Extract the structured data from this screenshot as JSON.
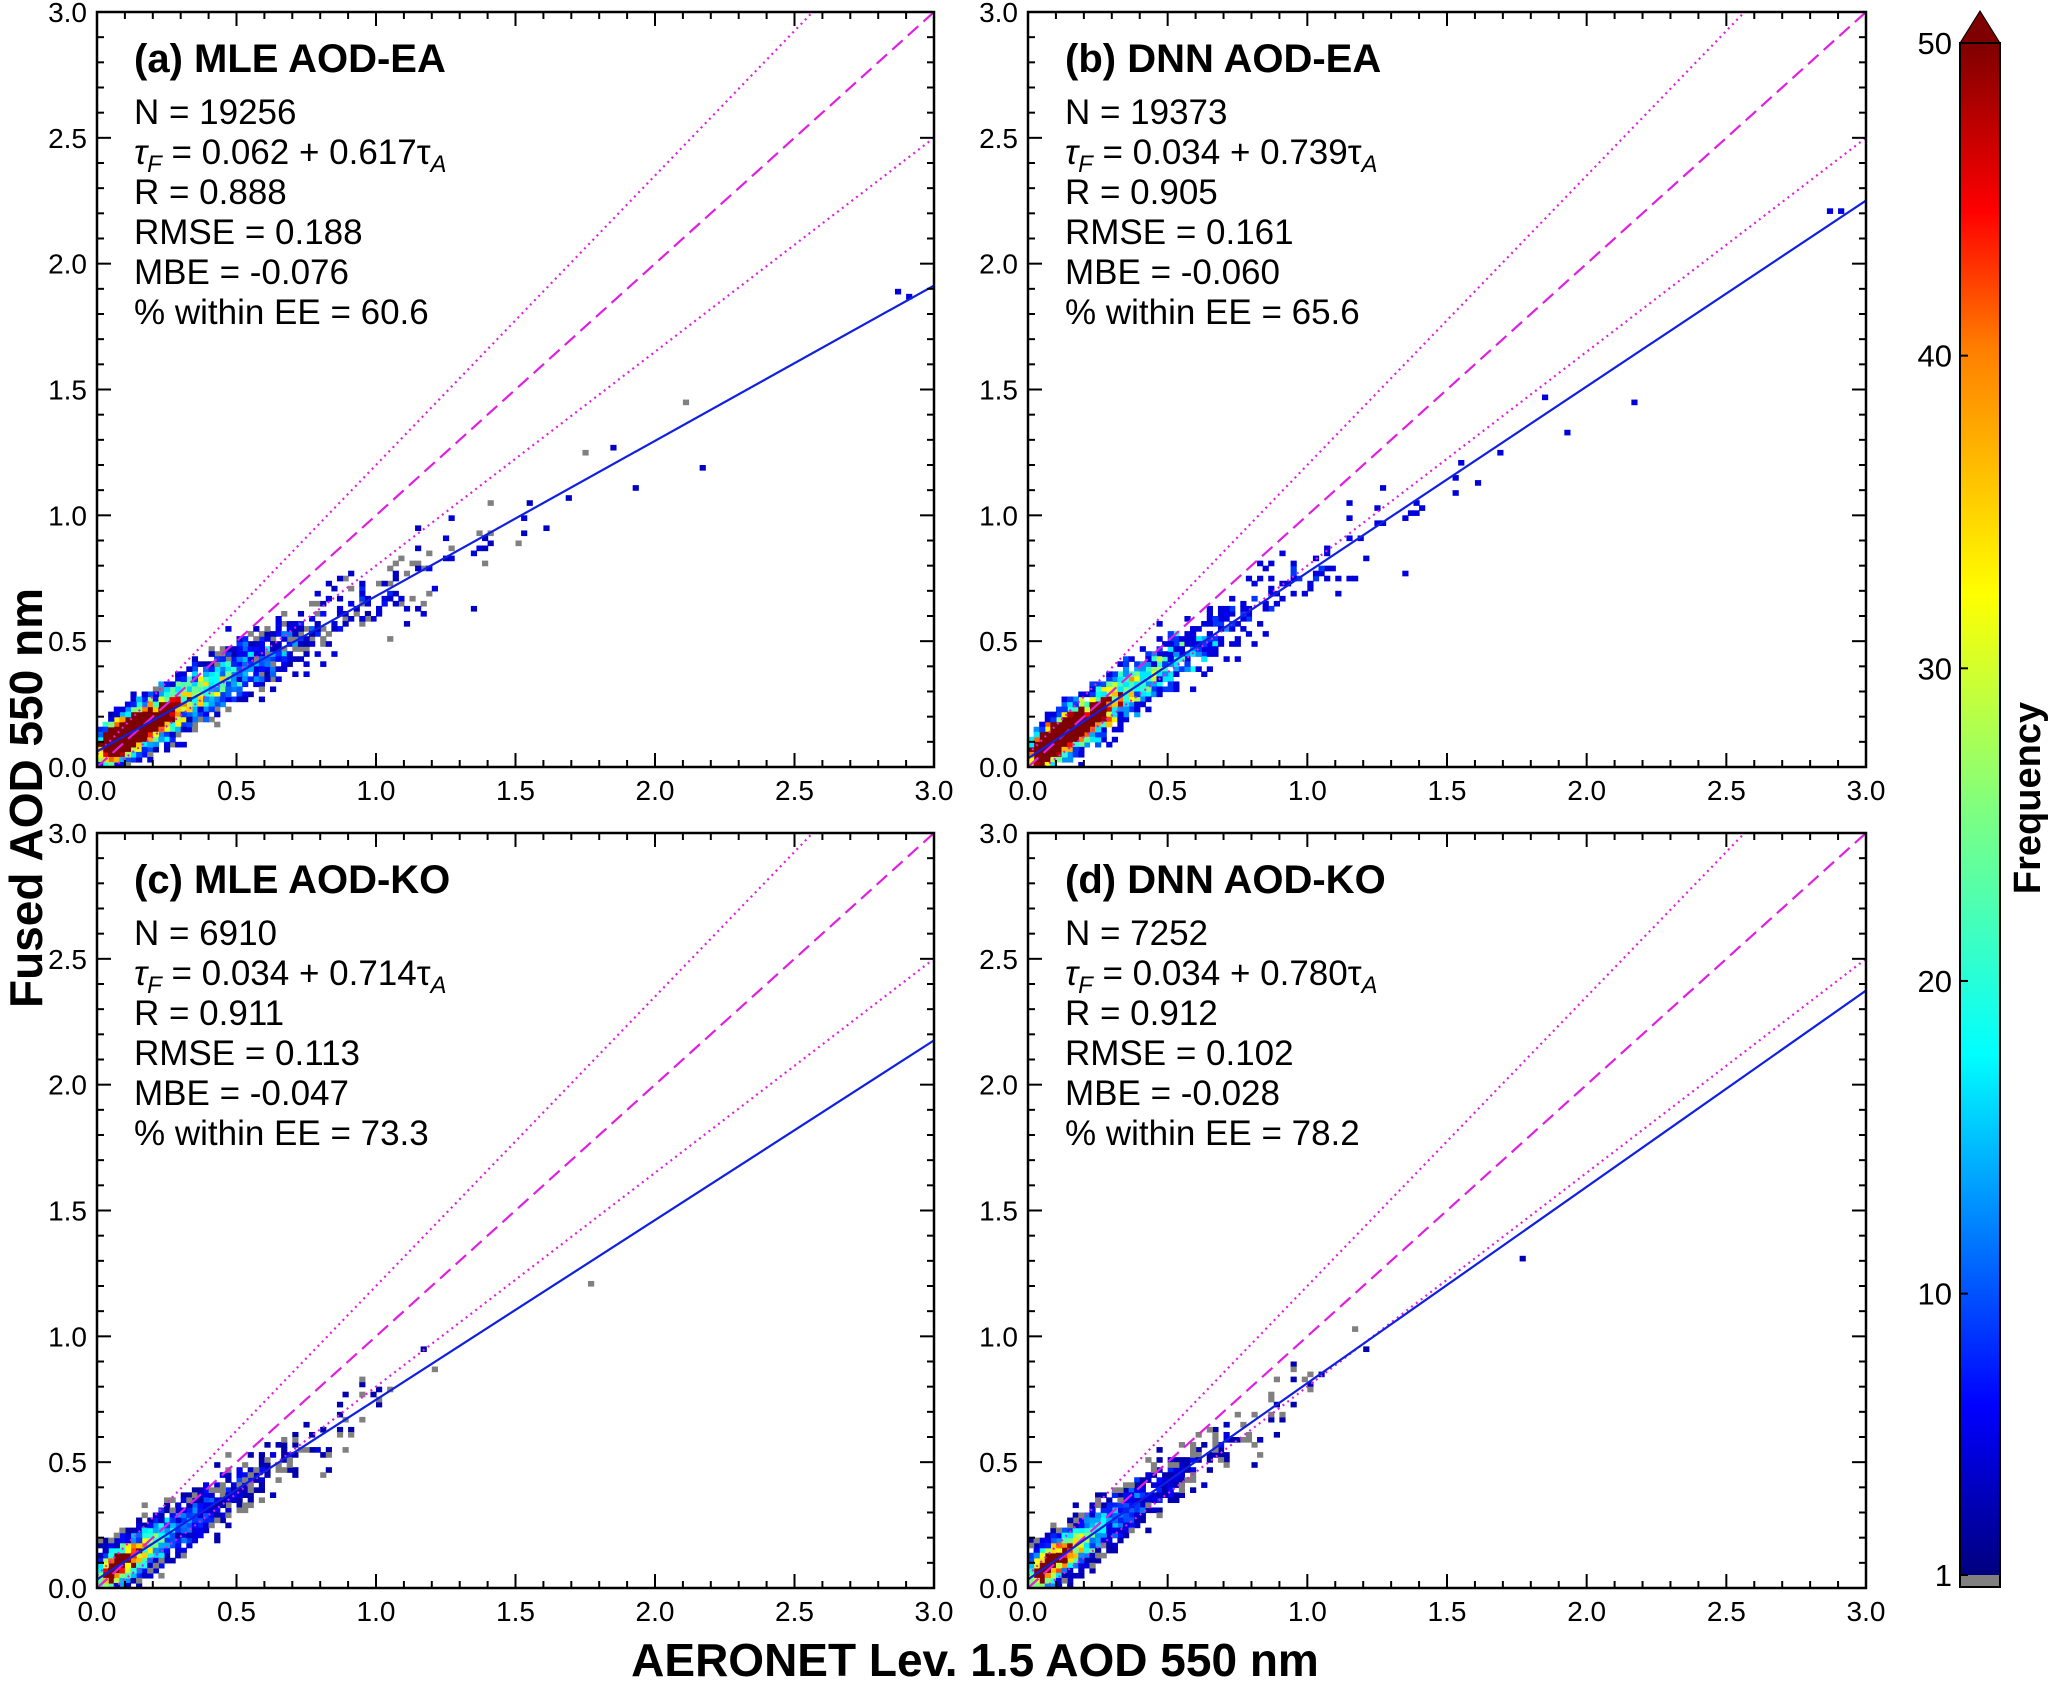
{
  "figure": {
    "xlabel": "AERONET Lev. 1.5 AOD 550 nm",
    "ylabel": "Fused AOD 550 nm",
    "colorbar": {
      "label": "Frequency",
      "ticks": [
        1,
        10,
        20,
        30,
        40,
        50
      ],
      "range": [
        1,
        50
      ],
      "extend": "max",
      "under_color": "#808080"
    }
  },
  "chart_data": [
    {
      "type": "heatmap",
      "title": "(a) MLE AOD-EA",
      "xlim": [
        0,
        3
      ],
      "ylim": [
        0,
        3
      ],
      "xticks": [
        "0.0",
        "0.5",
        "1.0",
        "1.5",
        "2.0",
        "2.5",
        "3.0"
      ],
      "yticks": [
        "0.0",
        "0.5",
        "1.0",
        "1.5",
        "2.0",
        "2.5",
        "3.0"
      ],
      "stats": {
        "n_label": "N = 19256",
        "fit_lhs": "τ",
        "fit_lhs_sub": "F",
        "fit_rhs": " = 0.062 + 0.617τ",
        "fit_rhs_sub": "A",
        "r_label": "R = 0.888",
        "rmse_label": "RMSE = 0.188",
        "mbe_label": "MBE = -0.076",
        "ee_label": "% within EE = 60.6"
      },
      "fit": {
        "intercept": 0.062,
        "slope": 0.617
      },
      "N": 19256,
      "R": 0.888,
      "RMSE": 0.188,
      "MBE": -0.076,
      "within_EE_pct": 60.6,
      "ee_envelope": {
        "abs": 0.05,
        "rel": 0.15
      },
      "density_core": {
        "x": 0.15,
        "y": 0.14,
        "peak_frequency": 50
      }
    },
    {
      "type": "heatmap",
      "title": "(b) DNN AOD-EA",
      "xlim": [
        0,
        3
      ],
      "ylim": [
        0,
        3
      ],
      "xticks": [
        "0.0",
        "0.5",
        "1.0",
        "1.5",
        "2.0",
        "2.5",
        "3.0"
      ],
      "yticks": [
        "0.0",
        "0.5",
        "1.0",
        "1.5",
        "2.0",
        "2.5",
        "3.0"
      ],
      "stats": {
        "n_label": "N = 19373",
        "fit_lhs": "τ",
        "fit_lhs_sub": "F",
        "fit_rhs": " = 0.034 + 0.739τ",
        "fit_rhs_sub": "A",
        "r_label": "R = 0.905",
        "rmse_label": "RMSE = 0.161",
        "mbe_label": "MBE = -0.060",
        "ee_label": "% within EE = 65.6"
      },
      "fit": {
        "intercept": 0.034,
        "slope": 0.739
      },
      "N": 19373,
      "R": 0.905,
      "RMSE": 0.161,
      "MBE": -0.06,
      "within_EE_pct": 65.6,
      "ee_envelope": {
        "abs": 0.05,
        "rel": 0.15
      },
      "density_core": {
        "x": 0.15,
        "y": 0.13,
        "peak_frequency": 50
      }
    },
    {
      "type": "heatmap",
      "title": "(c) MLE AOD-KO",
      "xlim": [
        0,
        3
      ],
      "ylim": [
        0,
        3
      ],
      "xticks": [
        "0.0",
        "0.5",
        "1.0",
        "1.5",
        "2.0",
        "2.5",
        "3.0"
      ],
      "yticks": [
        "0.0",
        "0.5",
        "1.0",
        "1.5",
        "2.0",
        "2.5",
        "3.0"
      ],
      "stats": {
        "n_label": "N = 6910",
        "fit_lhs": "τ",
        "fit_lhs_sub": "F",
        "fit_rhs": " = 0.034 + 0.714τ",
        "fit_rhs_sub": "A",
        "r_label": "R = 0.911",
        "rmse_label": "RMSE = 0.113",
        "mbe_label": "MBE = -0.047",
        "ee_label": "% within EE = 73.3"
      },
      "fit": {
        "intercept": 0.034,
        "slope": 0.714
      },
      "N": 6910,
      "R": 0.911,
      "RMSE": 0.113,
      "MBE": -0.047,
      "within_EE_pct": 73.3,
      "ee_envelope": {
        "abs": 0.05,
        "rel": 0.15
      },
      "density_core": {
        "x": 0.1,
        "y": 0.11,
        "peak_frequency": 45
      }
    },
    {
      "type": "heatmap",
      "title": "(d) DNN AOD-KO",
      "xlim": [
        0,
        3
      ],
      "ylim": [
        0,
        3
      ],
      "xticks": [
        "0.0",
        "0.5",
        "1.0",
        "1.5",
        "2.0",
        "2.5",
        "3.0"
      ],
      "yticks": [
        "0.0",
        "0.5",
        "1.0",
        "1.5",
        "2.0",
        "2.5",
        "3.0"
      ],
      "stats": {
        "n_label": "N = 7252",
        "fit_lhs": "τ",
        "fit_lhs_sub": "F",
        "fit_rhs": " = 0.034 + 0.780τ",
        "fit_rhs_sub": "A",
        "r_label": "R = 0.912",
        "rmse_label": "RMSE = 0.102",
        "mbe_label": "MBE = -0.028",
        "ee_label": "% within EE = 78.2"
      },
      "fit": {
        "intercept": 0.034,
        "slope": 0.78
      },
      "N": 7252,
      "R": 0.912,
      "RMSE": 0.102,
      "MBE": -0.028,
      "within_EE_pct": 78.2,
      "ee_envelope": {
        "abs": 0.05,
        "rel": 0.15
      },
      "density_core": {
        "x": 0.1,
        "y": 0.1,
        "peak_frequency": 40
      }
    }
  ],
  "colors": {
    "one_to_one": "#e020e0",
    "ee_bounds": "#e020e0",
    "fit_line": "#1020e0",
    "low_count": "#808080",
    "colormap": [
      "#00007f",
      "#0000ff",
      "#007fff",
      "#00ffff",
      "#7fff7f",
      "#ffff00",
      "#ff7f00",
      "#ff0000",
      "#7f0000"
    ]
  }
}
